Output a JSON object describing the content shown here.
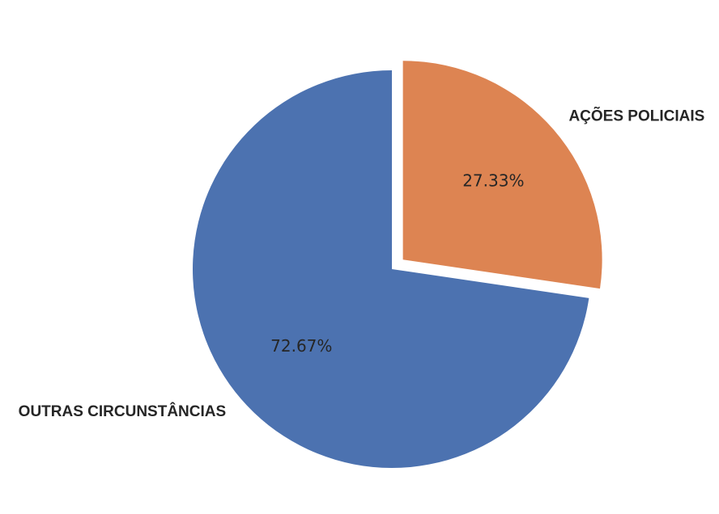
{
  "chart_data": {
    "type": "pie",
    "slices": [
      {
        "label": "AÇÕES POLICIAIS",
        "value": 27.33,
        "pct_label": "27.33%",
        "color": "#dd8452",
        "exploded": true
      },
      {
        "label": "OUTRAS CIRCUNSTÂNCIAS",
        "value": 72.67,
        "pct_label": "72.67%",
        "color": "#4c72b0",
        "exploded": false
      }
    ],
    "title": "",
    "legend": "none"
  }
}
